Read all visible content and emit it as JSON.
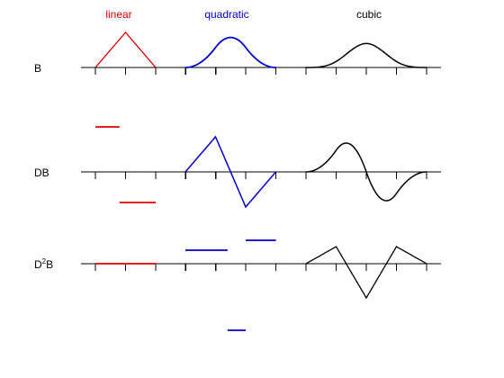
{
  "columns": [
    {
      "key": "linear",
      "label": "linear",
      "color": "#dd0000"
    },
    {
      "key": "quadratic",
      "label": "quadratic",
      "color": "#0000cc"
    },
    {
      "key": "cubic",
      "label": "cubic",
      "color": "#000000"
    }
  ],
  "rows": [
    {
      "key": "B",
      "label": "B"
    },
    {
      "key": "DB",
      "label": "DB"
    },
    {
      "key": "D2B",
      "label_base_a": "D",
      "label_sup": "2",
      "label_base_b": "B"
    }
  ],
  "chart_data": {
    "type": "diagram",
    "title": "",
    "series_note": "",
    "knots": [
      0,
      1,
      2,
      3,
      4
    ]
  }
}
